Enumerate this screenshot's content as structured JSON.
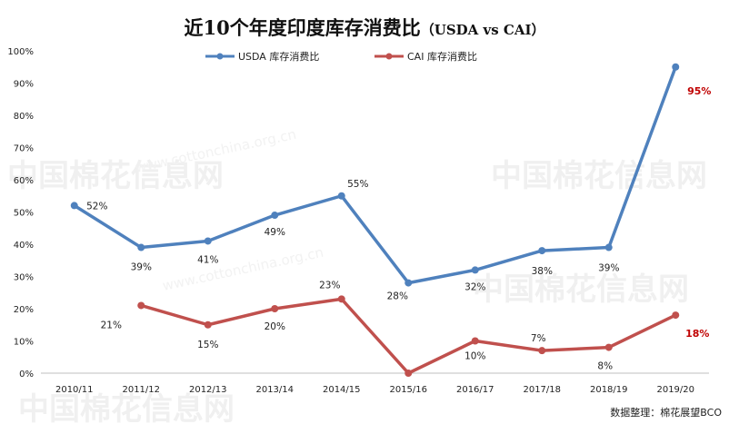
{
  "chart_data": {
    "type": "line",
    "title": "近10个年度印度库存消费比",
    "title_suffix": "（USDA vs CAI）",
    "categories": [
      "2010/11",
      "2011/12",
      "2012/13",
      "2013/14",
      "2014/15",
      "2015/16",
      "2016/17",
      "2017/18",
      "2018/19",
      "2019/20"
    ],
    "ylim": [
      0,
      100
    ],
    "y_ticks": [
      "0%",
      "10%",
      "20%",
      "30%",
      "40%",
      "50%",
      "60%",
      "70%",
      "80%",
      "90%",
      "100%"
    ],
    "legend_position": "top",
    "grid": false,
    "series": [
      {
        "name": "USDA 库存消费比",
        "color": "#4f81bd",
        "values": [
          52,
          39,
          41,
          49,
          55,
          28,
          32,
          38,
          39,
          95
        ],
        "labels": [
          "52%",
          "39%",
          "41%",
          "49%",
          "55%",
          "28%",
          "32%",
          "38%",
          "39%",
          "95%"
        ]
      },
      {
        "name": "CAI 库存消费比",
        "color": "#c0504d",
        "values": [
          null,
          21,
          15,
          20,
          23,
          0,
          10,
          7,
          8,
          18
        ],
        "labels": [
          "",
          "21%",
          "15%",
          "20%",
          "23%",
          "",
          "10%",
          "7%",
          "8%",
          "18%"
        ]
      }
    ]
  },
  "source": "数据整理：棉花展望BCO",
  "watermark": {
    "text": "中国棉花信息网",
    "url": "www.cottonchina.org.cn"
  },
  "colors": {
    "highlight_label": "#c00000",
    "axis": "#bfbfbf"
  }
}
